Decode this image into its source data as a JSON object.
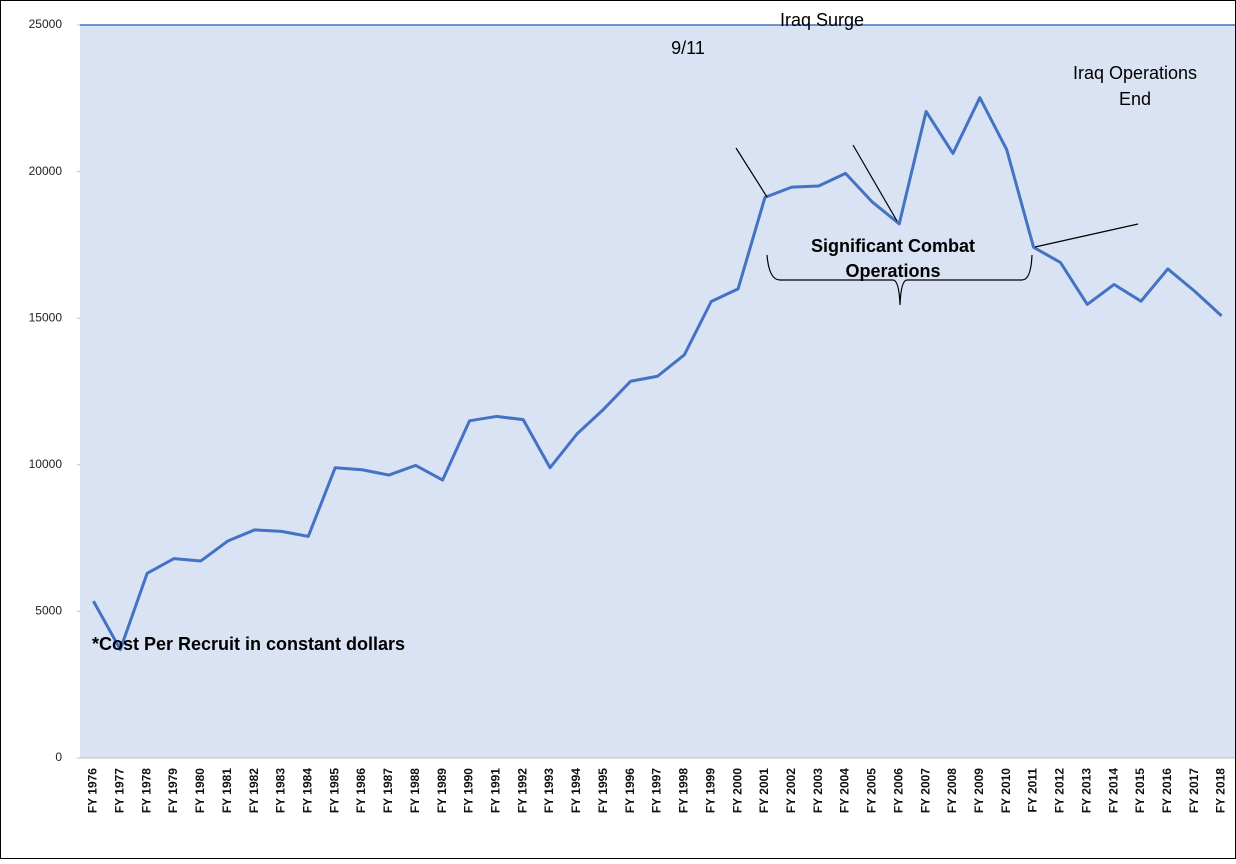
{
  "chart_data": {
    "type": "line",
    "annotations": {
      "iraq_surge": "Iraq Surge",
      "nine_eleven": "9/11",
      "iraq_end": [
        "Iraq Operations",
        "End"
      ],
      "combat": [
        "Significant Combat",
        "Operations"
      ],
      "note": "*Cost Per Recruit in constant dollars"
    },
    "categories": [
      "FY 1976",
      "FY 1977",
      "FY 1978",
      "FY 1979",
      "FY 1980",
      "FY 1981",
      "FY 1982",
      "FY 1983",
      "FY 1984",
      "FY 1985",
      "FY 1986",
      "FY 1987",
      "FY 1988",
      "FY 1989",
      "FY 1990",
      "FY 1991",
      "FY 1992",
      "FY 1993",
      "FY 1994",
      "FY 1995",
      "FY 1996",
      "FY 1997",
      "FY 1998",
      "FY 1999",
      "FY 2000",
      "FY 2001",
      "FY 2002",
      "FY 2003",
      "FY 2004",
      "FY 2005",
      "FY 2006",
      "FY 2007",
      "FY 2008",
      "FY 2009",
      "FY 2010",
      "FY 2011",
      "FY 2012",
      "FY 2013",
      "FY 2014",
      "FY 2015",
      "FY 2016",
      "FY 2017",
      "FY 2018"
    ],
    "values": [
      5350,
      3700,
      6300,
      6800,
      6720,
      7400,
      7780,
      7730,
      7560,
      9900,
      9830,
      9650,
      9980,
      9480,
      11500,
      11650,
      11540,
      9900,
      11050,
      11900,
      12850,
      13020,
      13750,
      15570,
      16000,
      19120,
      19470,
      19510,
      19940,
      18960,
      18220,
      22050,
      20620,
      22520,
      20750,
      17420,
      16900,
      15470,
      16150,
      15580,
      16680,
      15920,
      15080
    ],
    "color": "#4472c4",
    "ylim": [
      0,
      25000
    ],
    "yticks": [
      0,
      5000,
      10000,
      15000,
      20000,
      25000
    ],
    "grid": false
  }
}
